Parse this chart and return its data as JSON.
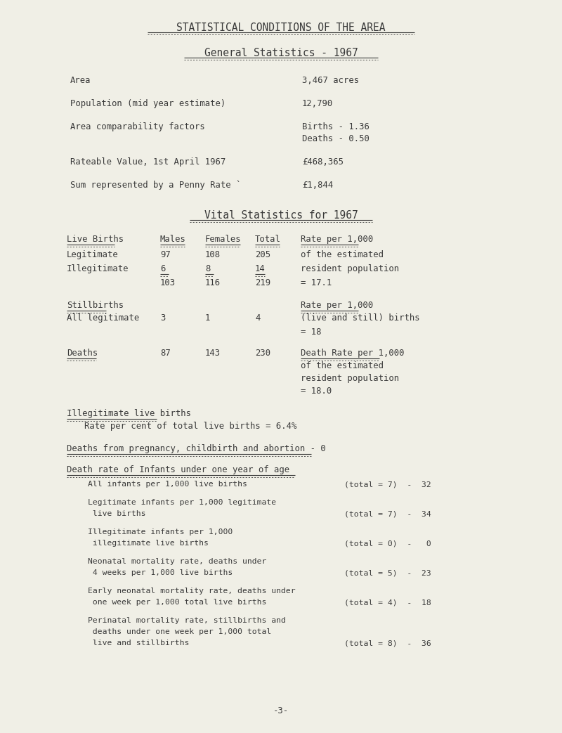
{
  "bg_color": "#f0efe6",
  "text_color": "#3a3a3a",
  "title1": "STATISTICAL CONDITIONS OF THE AREA",
  "title2": "General Statistics - 1967",
  "vital_title": "Vital Statistics for 1967",
  "illeg_births_title": "Illegitimate live births",
  "illeg_births_text": "Rate per cent of total live births = 6.4%",
  "deaths_preg_title": "Deaths from pregnancy, childbirth and abortion - 0",
  "infant_death_title": "Death rate of Infants under one year of age",
  "page_num": "-3-",
  "font_family": "DejaVu Sans Mono",
  "font_size_title": 10.5,
  "font_size_body": 8.8,
  "font_size_small": 8.2
}
